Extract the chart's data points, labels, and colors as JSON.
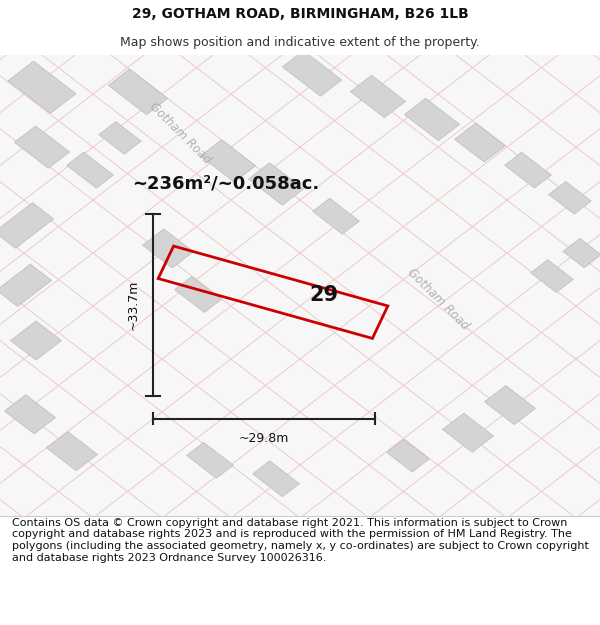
{
  "title": "29, GOTHAM ROAD, BIRMINGHAM, B26 1LB",
  "subtitle": "Map shows position and indicative extent of the property.",
  "footer": "Contains OS data © Crown copyright and database right 2021. This information is subject to Crown copyright and database rights 2023 and is reproduced with the permission of HM Land Registry. The polygons (including the associated geometry, namely x, y co-ordinates) are subject to Crown copyright and database rights 2023 Ordnance Survey 100026316.",
  "map_bg": "#f7f7f7",
  "title_fontsize": 10,
  "subtitle_fontsize": 9,
  "footer_fontsize": 8,
  "road_label_1": "Gotham Road",
  "road_label_2": "Gotham Road",
  "area_text": "~236m²/~0.058ac.",
  "number_label": "29",
  "dim_width_text": "~29.8m",
  "dim_height_text": "~33.7m",
  "property_color": "#cc0000",
  "background_color": "#ffffff",
  "grid_color": "#f0c8c8",
  "block_color": "#d4d4d4",
  "block_edge_color": "#bbbbbb",
  "road_bg_color": "#ebebeb"
}
